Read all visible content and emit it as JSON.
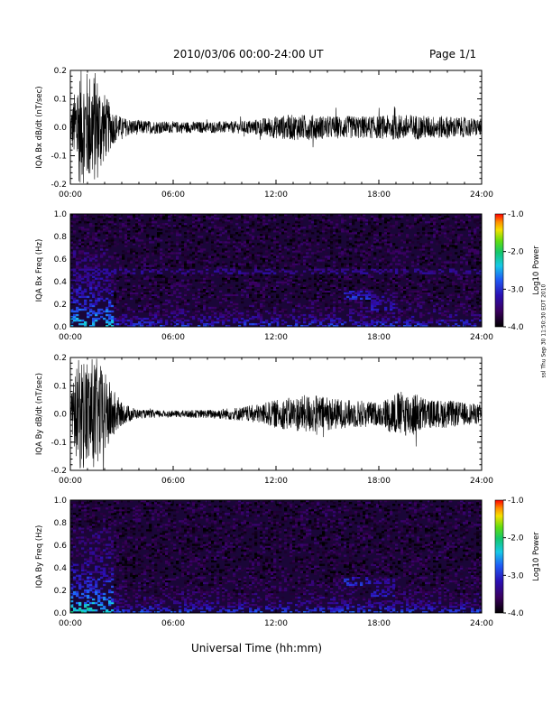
{
  "header": {
    "title": "2010/03/06  00:00-24:00 UT",
    "page": "Page 1/1"
  },
  "footer": {
    "x_axis_title": "Universal Time (hh:mm)",
    "stamp": "ssl Thu Sep 30 11:50:30 EDT 2010"
  },
  "chart_data": [
    {
      "type": "line",
      "ylabel": "IQA Bx dB/dt (nT/sec)",
      "xlim": [
        0,
        24
      ],
      "ylim": [
        -0.2,
        0.2
      ],
      "x_ticks": [
        "00:00",
        "06:00",
        "12:00",
        "18:00",
        "24:00"
      ],
      "y_ticks": [
        "-0.2",
        "-0.1",
        "0.0",
        "0.1",
        "0.2"
      ],
      "envelope": {
        "x_hours": [
          0,
          0.5,
          1,
          1.5,
          2,
          2.5,
          3,
          4,
          6,
          8,
          10,
          11,
          12,
          13,
          14,
          15,
          16,
          17,
          18,
          19,
          20,
          21,
          22,
          23,
          24
        ],
        "amplitude": [
          0.05,
          0.2,
          0.2,
          0.2,
          0.12,
          0.06,
          0.035,
          0.025,
          0.02,
          0.02,
          0.022,
          0.03,
          0.04,
          0.045,
          0.045,
          0.04,
          0.04,
          0.04,
          0.04,
          0.045,
          0.045,
          0.04,
          0.04,
          0.035,
          0.03
        ]
      }
    },
    {
      "type": "heatmap",
      "ylabel": "IQA Bx Freq (Hz)",
      "xlim": [
        0,
        24
      ],
      "ylim": [
        0,
        1.0
      ],
      "x_ticks": [
        "00:00",
        "06:00",
        "12:00",
        "18:00",
        "24:00"
      ],
      "y_ticks": [
        "0.0",
        "0.2",
        "0.4",
        "0.6",
        "0.8",
        "1.0"
      ],
      "colorbar": {
        "label": "Log10 Power",
        "range": [
          -4.0,
          -1.0
        ],
        "ticks": [
          "-1.0",
          "-2.0",
          "-3.0",
          "-4.0"
        ]
      },
      "features": [
        {
          "x_hours": [
            0,
            2.5
          ],
          "freq_hz": [
            0,
            0.7
          ],
          "log_power": -2.2
        },
        {
          "x_hours": [
            0,
            24
          ],
          "freq_hz": [
            0.47,
            0.52
          ],
          "log_power": -3.2
        },
        {
          "x_hours": [
            16,
            17.5
          ],
          "freq_hz": [
            0.25,
            0.32
          ],
          "log_power": -2.8
        },
        {
          "x_hours": [
            17.5,
            19
          ],
          "freq_hz": [
            0.15,
            0.3
          ],
          "log_power": -3.0
        }
      ]
    },
    {
      "type": "line",
      "ylabel": "IQA By dB/dt (nT/sec)",
      "xlim": [
        0,
        24
      ],
      "ylim": [
        -0.2,
        0.2
      ],
      "x_ticks": [
        "00:00",
        "06:00",
        "12:00",
        "18:00",
        "24:00"
      ],
      "y_ticks": [
        "-0.2",
        "-0.1",
        "0.0",
        "0.1",
        "0.2"
      ],
      "envelope": {
        "x_hours": [
          0,
          0.5,
          1,
          1.5,
          2,
          2.5,
          3,
          4,
          6,
          8,
          10,
          11,
          12,
          13,
          14,
          15,
          16,
          17,
          18,
          19,
          20,
          21,
          22,
          23,
          24
        ],
        "amplitude": [
          0.06,
          0.2,
          0.2,
          0.2,
          0.15,
          0.09,
          0.04,
          0.015,
          0.012,
          0.015,
          0.025,
          0.035,
          0.05,
          0.06,
          0.07,
          0.06,
          0.05,
          0.05,
          0.04,
          0.08,
          0.08,
          0.05,
          0.05,
          0.04,
          0.035
        ]
      }
    },
    {
      "type": "heatmap",
      "ylabel": "IQA By Freq (Hz)",
      "xlim": [
        0,
        24
      ],
      "ylim": [
        0,
        1.0
      ],
      "x_ticks": [
        "00:00",
        "06:00",
        "12:00",
        "18:00",
        "24:00"
      ],
      "y_ticks": [
        "0.0",
        "0.2",
        "0.4",
        "0.6",
        "0.8",
        "1.0"
      ],
      "colorbar": {
        "label": "Log10 Power",
        "range": [
          -4.0,
          -1.0
        ],
        "ticks": [
          "-1.0",
          "-2.0",
          "-3.0",
          "-4.0"
        ]
      },
      "features": [
        {
          "x_hours": [
            0,
            2.5
          ],
          "freq_hz": [
            0,
            0.75
          ],
          "log_power": -2.0
        },
        {
          "x_hours": [
            16,
            17.5
          ],
          "freq_hz": [
            0.25,
            0.32
          ],
          "log_power": -2.8
        },
        {
          "x_hours": [
            17.5,
            19
          ],
          "freq_hz": [
            0.15,
            0.3
          ],
          "log_power": -3.0
        },
        {
          "x_hours": [
            3,
            24
          ],
          "freq_hz": [
            0,
            0.05
          ],
          "log_power": -3.0
        }
      ]
    }
  ]
}
